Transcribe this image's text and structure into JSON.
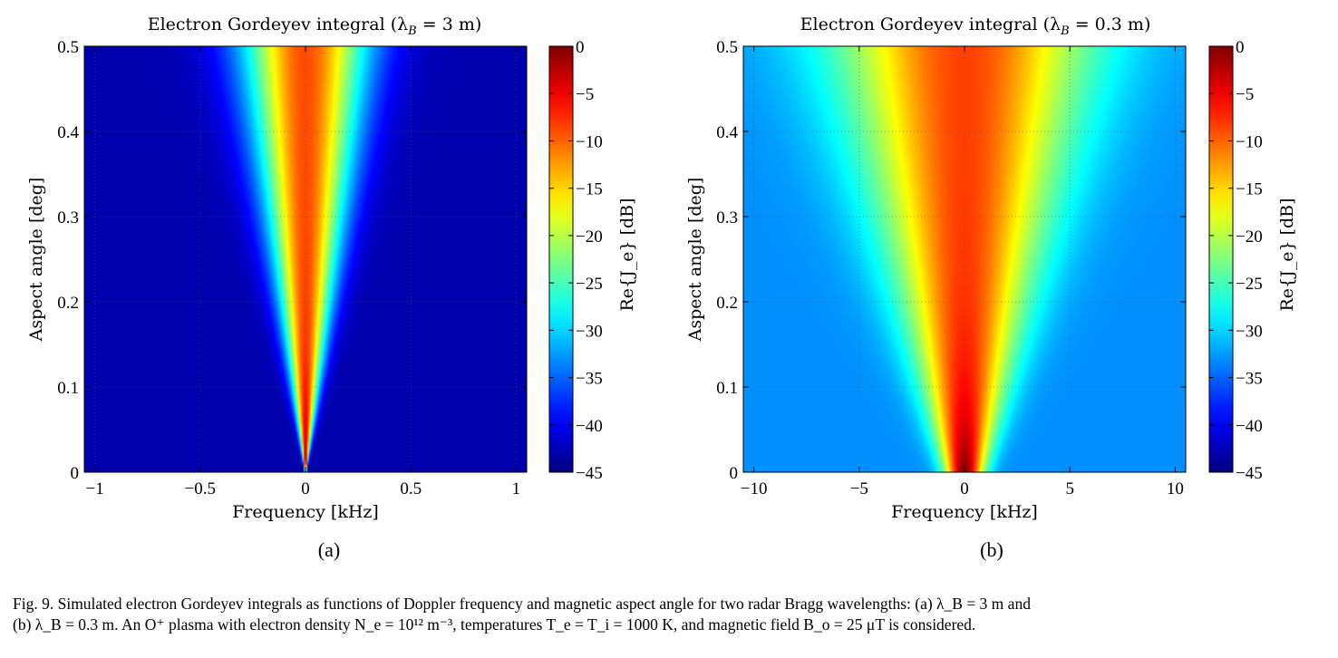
{
  "chart_data": [
    {
      "type": "heatmap",
      "panel_label": "(a)",
      "title": "Electron Gordeyev integral (λ",
      "title_sub": "B",
      "title_tail": " = 3 m)",
      "xlabel": "Frequency [kHz]",
      "ylabel": "Aspect angle [deg]",
      "xlim": [
        -1.05,
        1.05
      ],
      "ylim": [
        0,
        0.5
      ],
      "xticks": [
        -1,
        -0.5,
        0,
        0.5,
        1
      ],
      "xtick_labels": [
        "−1",
        "−0.5",
        "0",
        "0.5",
        "1"
      ],
      "yticks": [
        0,
        0.1,
        0.2,
        0.3,
        0.4,
        0.5
      ],
      "ytick_labels": [
        "0",
        "0.1",
        "0.2",
        "0.3",
        "0.4",
        "0.5"
      ],
      "grid": true,
      "colormap": "jet",
      "clim": [
        -45,
        0
      ],
      "colorbar_label": "Re{J_e} [dB]",
      "colorbar_ticks": [
        0,
        -5,
        -10,
        -15,
        -20,
        -25,
        -30,
        -35,
        -40,
        -45
      ],
      "colorbar_tick_labels": [
        "0",
        "−5",
        "−10",
        "−15",
        "−20",
        "−25",
        "−30",
        "−35",
        "−40",
        "−45"
      ],
      "model": {
        "width_base": 0.0028,
        "width_slope": 0.6,
        "floor_db": -43,
        "peak_db": -9,
        "peak_k": 14
      }
    },
    {
      "type": "heatmap",
      "panel_label": "(b)",
      "title": "Electron Gordeyev integral (λ",
      "title_sub": "B",
      "title_tail": " = 0.3 m)",
      "xlabel": "Frequency [kHz]",
      "ylabel": "Aspect angle [deg]",
      "xlim": [
        -10.5,
        10.5
      ],
      "ylim": [
        0,
        0.5
      ],
      "xticks": [
        -10,
        -5,
        0,
        5,
        10
      ],
      "xtick_labels": [
        "−10",
        "−5",
        "0",
        "5",
        "10"
      ],
      "yticks": [
        0,
        0.1,
        0.2,
        0.3,
        0.4,
        0.5
      ],
      "ytick_labels": [
        "0",
        "0.1",
        "0.2",
        "0.3",
        "0.4",
        "0.5"
      ],
      "grid": true,
      "colormap": "jet",
      "clim": [
        -45,
        0
      ],
      "colorbar_label": "Re{J_e} [dB]",
      "colorbar_ticks": [
        0,
        -5,
        -10,
        -15,
        -20,
        -25,
        -30,
        -35,
        -40,
        -45
      ],
      "colorbar_tick_labels": [
        "0",
        "−5",
        "−10",
        "−15",
        "−20",
        "−25",
        "−30",
        "−35",
        "−40",
        "−45"
      ],
      "model": {
        "width_base": 0.9,
        "width_slope": 10,
        "floor_db": -33,
        "peak_db": -8.5,
        "peak_k": 12
      }
    }
  ],
  "caption": {
    "line1": "Fig. 9.    Simulated electron Gordeyev integrals as functions of Doppler frequency and magnetic aspect angle for two radar Bragg wavelengths: (a) λ_B = 3 m and",
    "line2": "(b) λ_B = 0.3 m. An O⁺ plasma with electron density N_e = 10¹² m⁻³, temperatures T_e = T_i = 1000 K, and magnetic field B_o = 25 μT is considered."
  }
}
